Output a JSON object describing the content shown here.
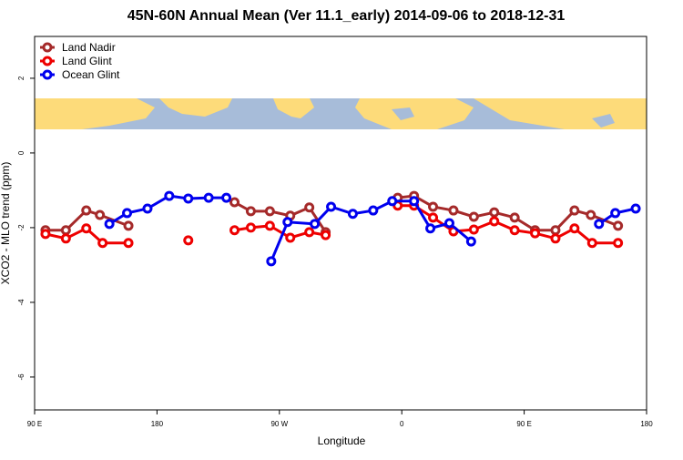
{
  "chart_data": {
    "type": "line",
    "title": "45N-60N Annual Mean (Ver 11.1_early)   2014-09-06 to 2018-12-31",
    "x_label": "Longitude",
    "y_label": "XCO2 - MLO trend (ppm)",
    "xlim": [
      90,
      540
    ],
    "ylim": [
      -6.88,
      3.12
    ],
    "xticks": [
      {
        "value": 90,
        "label": "90 E"
      },
      180,
      {
        "value": 270,
        "label": "90 W"
      },
      {
        "value": 360,
        "label": "0"
      },
      {
        "value": 450,
        "label": "90 E"
      },
      {
        "value": 540,
        "label": "180"
      }
    ],
    "yticks": [
      2,
      0,
      -2,
      -4,
      -6
    ],
    "legend": "top-left",
    "series": [
      {
        "name": "Land Nadir",
        "color": "#a52a2a",
        "x": [
          98,
          113,
          128,
          138,
          159,
          null,
          237,
          249,
          263,
          278,
          292,
          304,
          null,
          357,
          369,
          383,
          398,
          413,
          428,
          443,
          458,
          473,
          487,
          499,
          519
        ],
        "values": [
          -2.07,
          -2.07,
          -1.54,
          -1.66,
          -1.95,
          null,
          -1.32,
          -1.56,
          -1.56,
          -1.68,
          -1.46,
          -2.12,
          null,
          -1.2,
          -1.15,
          -1.44,
          -1.54,
          -1.71,
          -1.59,
          -1.73,
          -2.07,
          -2.07,
          -1.54,
          -1.66,
          -1.95
        ]
      },
      {
        "name": "Land Glint",
        "color": "#ee0000",
        "x": [
          98,
          113,
          128,
          140,
          159,
          null,
          203,
          null,
          237,
          249,
          263,
          278,
          292,
          304,
          null,
          357,
          369,
          383,
          398,
          413,
          428,
          443,
          458,
          473,
          487,
          500,
          519
        ],
        "values": [
          -2.17,
          -2.29,
          -2.02,
          -2.41,
          -2.41,
          null,
          -2.34,
          null,
          -2.07,
          -2.0,
          -1.95,
          -2.27,
          -2.12,
          -2.2,
          null,
          -1.41,
          -1.41,
          -1.73,
          -2.1,
          -2.05,
          -1.83,
          -2.07,
          -2.15,
          -2.29,
          -2.02,
          -2.41,
          -2.41
        ]
      },
      {
        "name": "Ocean Glint",
        "color": "#0000ee",
        "x": [
          145,
          158,
          173,
          189,
          203,
          218,
          231,
          null,
          264,
          276,
          296,
          308,
          324,
          339,
          353,
          369,
          381,
          395,
          411,
          null,
          505,
          517,
          532
        ],
        "values": [
          -1.9,
          -1.61,
          -1.49,
          -1.15,
          -1.22,
          -1.2,
          -1.2,
          null,
          -2.9,
          -1.85,
          -1.9,
          -1.44,
          -1.63,
          -1.54,
          -1.29,
          -1.29,
          -2.02,
          -1.88,
          -2.37,
          null,
          -1.9,
          -1.61,
          -1.49
        ]
      }
    ]
  }
}
